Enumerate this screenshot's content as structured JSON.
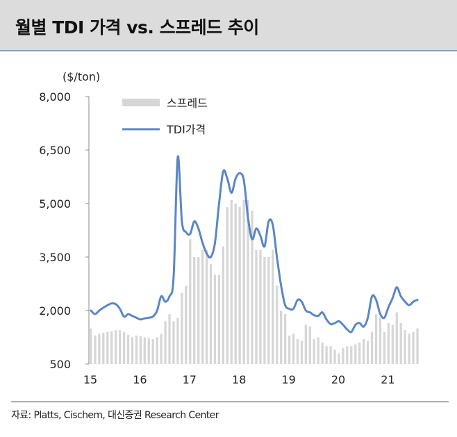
{
  "title": "월별 TDI 가격 vs. 스프레드 추이",
  "source": "자료: Platts, Cischem, 대신증권 Research Center",
  "colors": {
    "price_line": "#5b86c5",
    "spread_bar": "#d6d6d6",
    "title_bg": "#dcdcdc",
    "title_rule": "#7f9fc3"
  },
  "chart_data": {
    "type": "bar+line",
    "unit_label": "($/ton)",
    "ylim": [
      500,
      8000
    ],
    "yticks": [
      "8,000",
      "6,500",
      "5,000",
      "3,500",
      "2,000",
      "500"
    ],
    "ytick_values": [
      8000,
      6500,
      5000,
      3500,
      2000,
      500
    ],
    "xticks": [
      "15",
      "16",
      "17",
      "18",
      "19",
      "20",
      "21"
    ],
    "x_start": "2015-01",
    "legend": {
      "position": "top-left",
      "entries": [
        "스프레드",
        "TDI가격"
      ]
    },
    "series": [
      {
        "name": "스프레드",
        "type": "bar",
        "values": [
          1500,
          1300,
          1350,
          1380,
          1400,
          1420,
          1450,
          1450,
          1400,
          1320,
          1250,
          1300,
          1280,
          1250,
          1220,
          1200,
          1250,
          1350,
          1700,
          1900,
          1700,
          1800,
          2500,
          2700,
          4000,
          3500,
          3500,
          3700,
          3700,
          3300,
          3000,
          3000,
          3800,
          4900,
          5100,
          5000,
          4900,
          5100,
          5100,
          4800,
          3700,
          3700,
          3500,
          3500,
          3700,
          2700,
          2000,
          1900,
          1300,
          1350,
          1200,
          1150,
          1600,
          1550,
          1200,
          1250,
          1100,
          1000,
          1000,
          900,
          800,
          950,
          1000,
          1000,
          1050,
          1100,
          1200,
          1150,
          1400,
          1900,
          1800,
          1400,
          1650,
          1600,
          1950,
          1650,
          1450,
          1350,
          1400,
          1500
        ]
      },
      {
        "name": "TDI가격",
        "type": "line",
        "values": [
          2000,
          1900,
          2000,
          2080,
          2150,
          2200,
          2180,
          2050,
          1830,
          1900,
          1850,
          1800,
          1750,
          1780,
          1800,
          1830,
          2000,
          2400,
          2250,
          2400,
          2950,
          6300,
          4500,
          4200,
          4150,
          4500,
          4300,
          3900,
          3600,
          3500,
          3900,
          5000,
          5900,
          5700,
          5300,
          5700,
          5850,
          5650,
          4600,
          4000,
          4300,
          4100,
          3800,
          4500,
          4400,
          3500,
          2700,
          2150,
          2050,
          2050,
          2300,
          2250,
          2000,
          1950,
          1870,
          1850,
          1950,
          1750,
          1620,
          1650,
          1700,
          1600,
          1470,
          1400,
          1600,
          1650,
          1550,
          1800,
          2400,
          2300,
          1900,
          1800,
          2100,
          2350,
          2650,
          2400,
          2250,
          2150,
          2250,
          2300
        ]
      }
    ]
  }
}
